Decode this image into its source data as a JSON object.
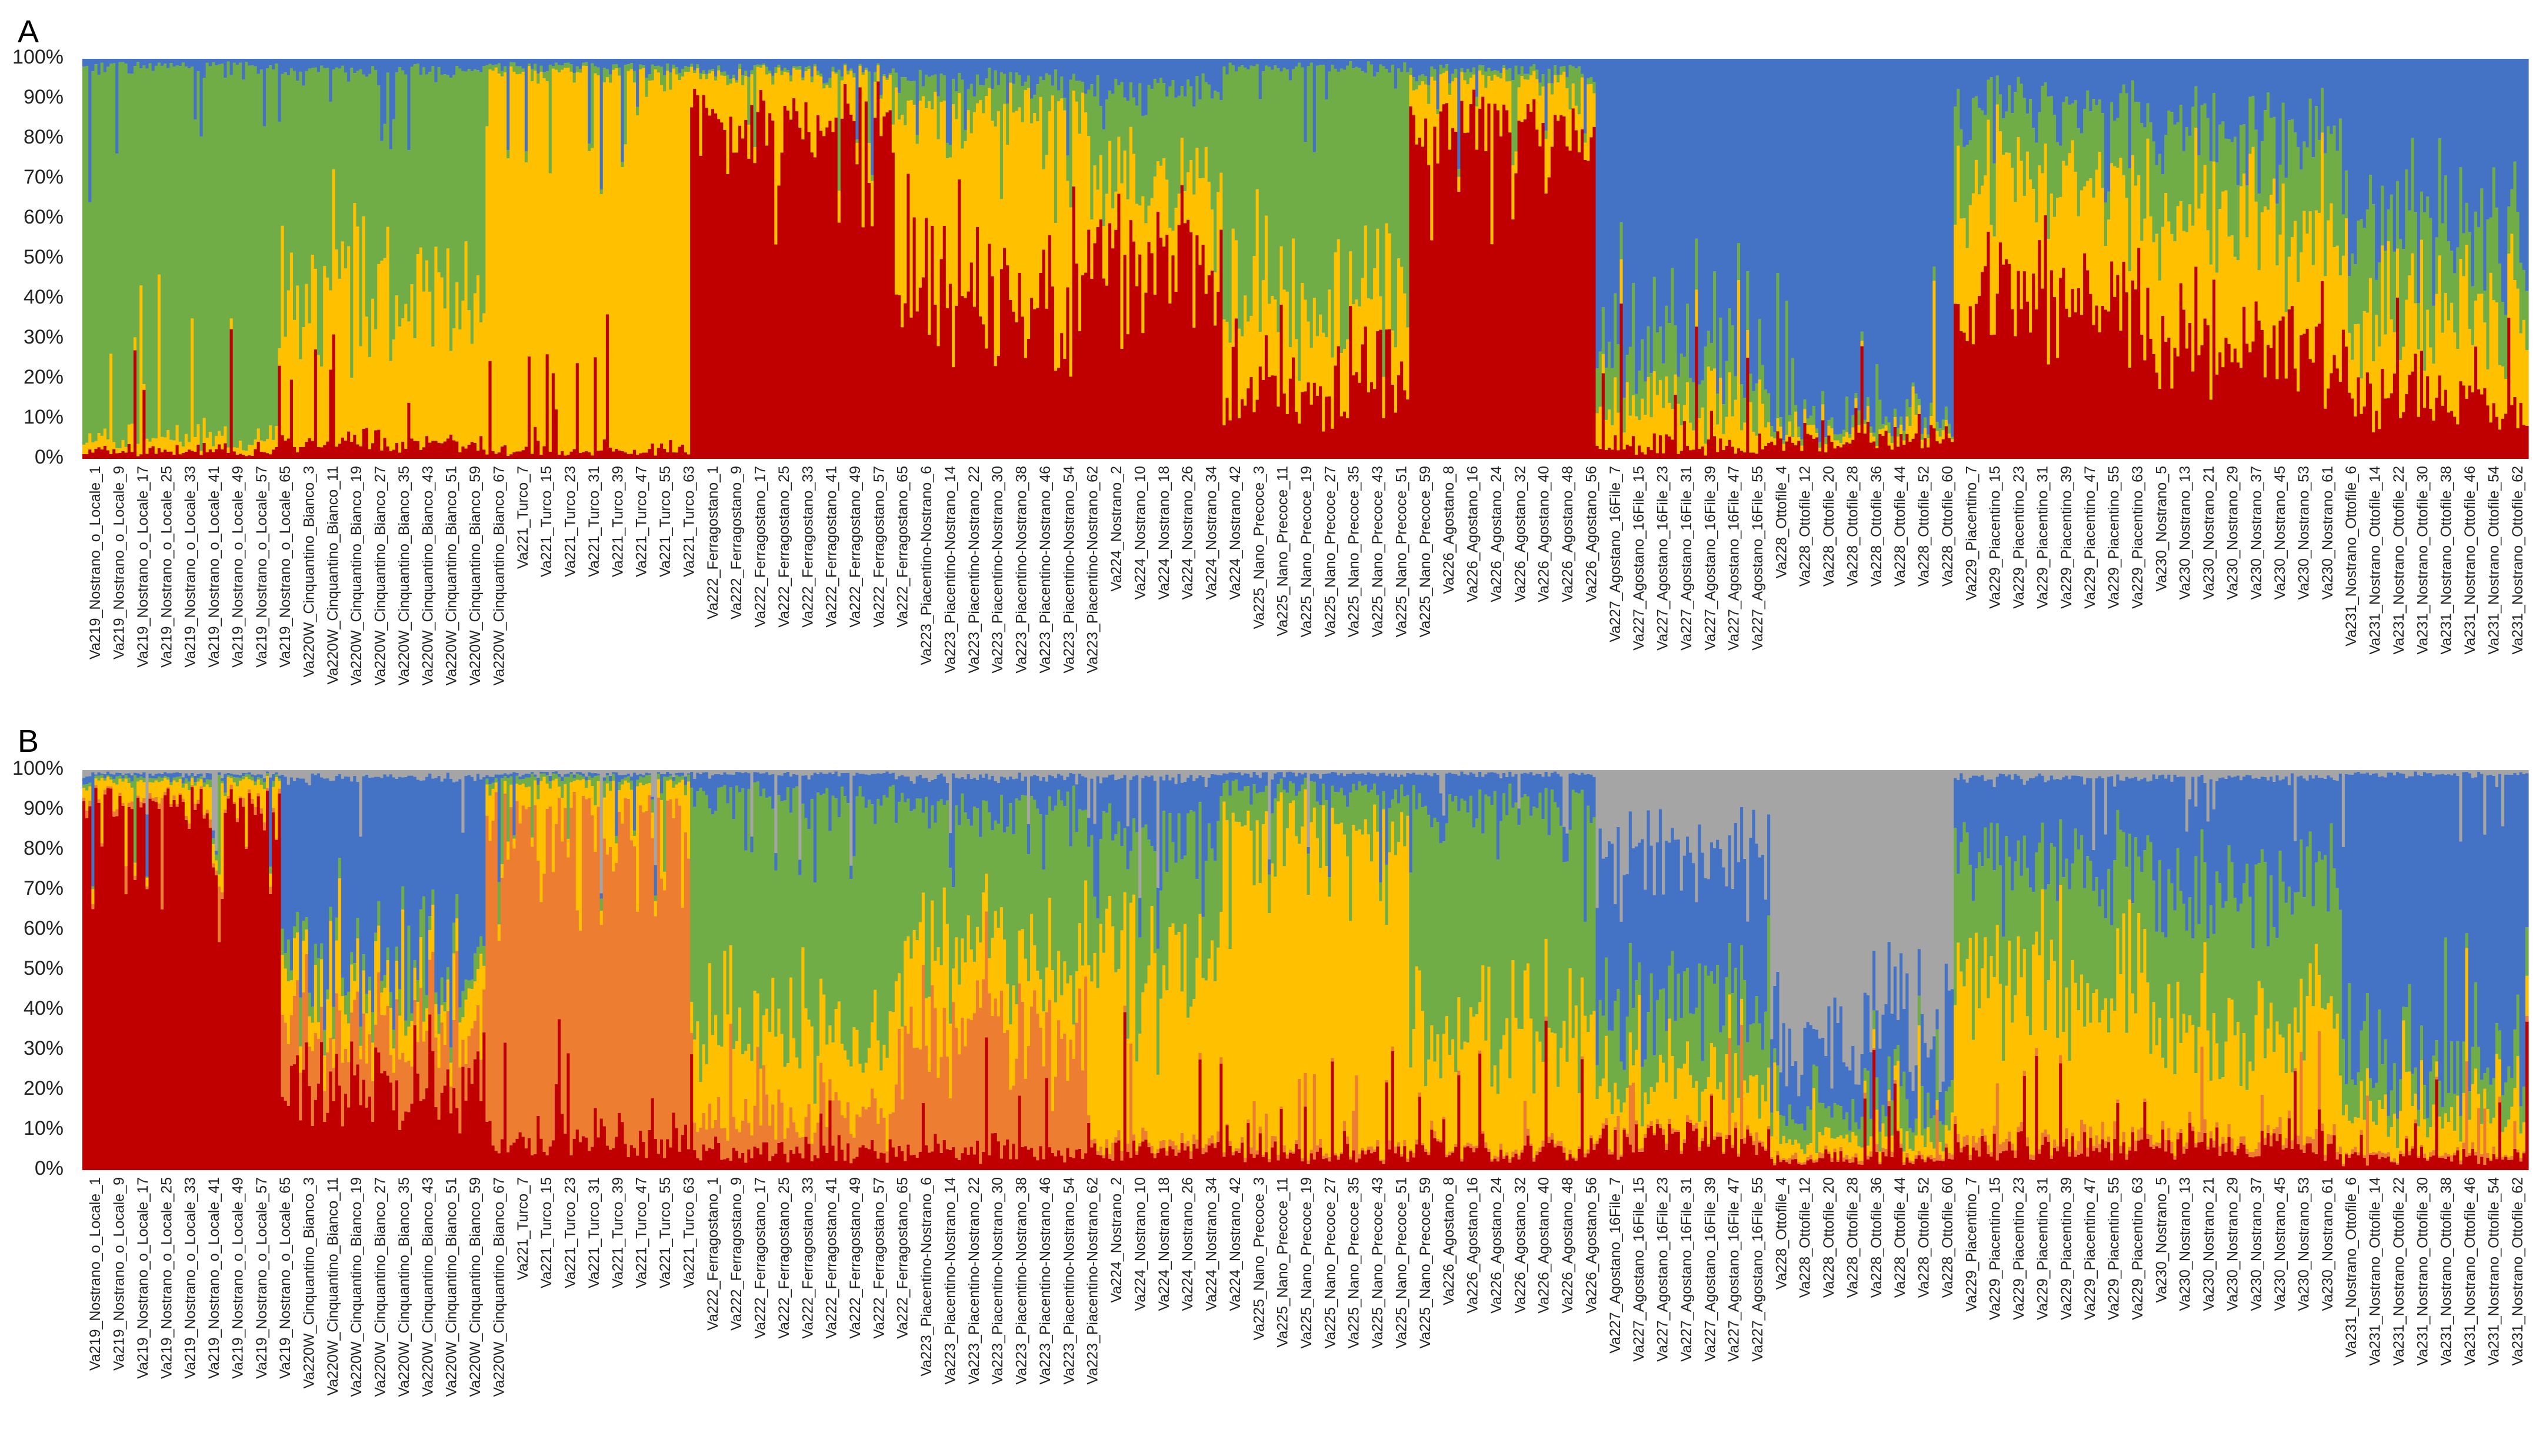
{
  "figure": {
    "panels": [
      "A",
      "B"
    ],
    "y_ticks": [
      "0%",
      "10%",
      "20%",
      "30%",
      "40%",
      "50%",
      "60%",
      "70%",
      "80%",
      "90%",
      "100%"
    ]
  },
  "chart_data": [
    {
      "type": "bar",
      "stacked": true,
      "panel": "A",
      "title": "A",
      "ylim": [
        0,
        100
      ],
      "ylabel": "",
      "xlabel": "",
      "clusters": [
        {
          "name": "red",
          "color": "#C00000"
        },
        {
          "name": "yellow",
          "color": "#FFC000"
        },
        {
          "name": "green",
          "color": "#70AD47"
        },
        {
          "name": "blue",
          "color": "#4472C4"
        }
      ],
      "groups": [
        {
          "name": "Va219",
          "n": 66,
          "q": [
            2,
            3,
            93,
            2
          ]
        },
        {
          "name": "Va220W",
          "n": 68,
          "q": [
            4,
            38,
            55,
            3
          ]
        },
        {
          "name": "Va221",
          "n": 68,
          "q": [
            2,
            94,
            2,
            2
          ]
        },
        {
          "name": "Va222",
          "n": 68,
          "q": [
            86,
            10,
            1,
            3
          ]
        },
        {
          "name": "Va223",
          "n": 64,
          "q": [
            44,
            44,
            6,
            6
          ]
        },
        {
          "name": "Va224",
          "n": 45,
          "q": [
            50,
            18,
            24,
            8
          ]
        },
        {
          "name": "Va225",
          "n": 62,
          "q": [
            18,
            20,
            60,
            2
          ]
        },
        {
          "name": "Va226",
          "n": 62,
          "q": [
            85,
            10,
            2,
            3
          ]
        },
        {
          "name": "Va227",
          "n": 58,
          "q": [
            3,
            10,
            12,
            75
          ]
        },
        {
          "name": "Va228",
          "n": 61,
          "q": [
            5,
            2,
            2,
            91
          ]
        },
        {
          "name": "Va229",
          "n": 65,
          "q": [
            40,
            30,
            18,
            12
          ]
        },
        {
          "name": "Va230",
          "n": 64,
          "q": [
            30,
            30,
            22,
            18
          ]
        },
        {
          "name": "Va231",
          "n": 62,
          "q": [
            15,
            20,
            20,
            45
          ]
        }
      ]
    },
    {
      "type": "bar",
      "stacked": true,
      "panel": "B",
      "title": "B",
      "ylim": [
        0,
        100
      ],
      "ylabel": "",
      "xlabel": "",
      "clusters": [
        {
          "name": "red",
          "color": "#C00000"
        },
        {
          "name": "orange",
          "color": "#ED7D31"
        },
        {
          "name": "yellow",
          "color": "#FFC000"
        },
        {
          "name": "green",
          "color": "#70AD47"
        },
        {
          "name": "blue",
          "color": "#4472C4"
        },
        {
          "name": "gray",
          "color": "#A5A5A5"
        }
      ],
      "groups": [
        {
          "name": "Va219",
          "n": 66,
          "q": [
            92,
            1,
            4,
            1,
            1,
            1
          ]
        },
        {
          "name": "Va220W",
          "n": 68,
          "q": [
            20,
            15,
            10,
            5,
            48,
            2
          ]
        },
        {
          "name": "Va221",
          "n": 68,
          "q": [
            8,
            82,
            6,
            2,
            1,
            1
          ]
        },
        {
          "name": "Va222",
          "n": 68,
          "q": [
            5,
            8,
            20,
            60,
            6,
            1
          ]
        },
        {
          "name": "Va223",
          "n": 64,
          "q": [
            5,
            30,
            20,
            35,
            8,
            2
          ]
        },
        {
          "name": "Va224",
          "n": 45,
          "q": [
            6,
            2,
            45,
            30,
            15,
            2
          ]
        },
        {
          "name": "Va225",
          "n": 62,
          "q": [
            4,
            1,
            80,
            10,
            4,
            1
          ]
        },
        {
          "name": "Va226",
          "n": 62,
          "q": [
            5,
            1,
            30,
            55,
            8,
            1
          ]
        },
        {
          "name": "Va227",
          "n": 58,
          "q": [
            8,
            1,
            12,
            18,
            40,
            21
          ]
        },
        {
          "name": "Va228",
          "n": 61,
          "q": [
            3,
            1,
            4,
            6,
            16,
            70
          ]
        },
        {
          "name": "Va229",
          "n": 65,
          "q": [
            6,
            2,
            40,
            30,
            20,
            2
          ]
        },
        {
          "name": "Va230",
          "n": 64,
          "q": [
            6,
            2,
            28,
            34,
            28,
            2
          ]
        },
        {
          "name": "Va231",
          "n": 62,
          "q": [
            4,
            1,
            10,
            10,
            74,
            1
          ]
        }
      ]
    }
  ],
  "sample_labels": [
    "Va219_Nostrano_o_Locale_1",
    "Va219_Nostrano_o_Locale_9",
    "Va219_Nostrano_o_Locale_17",
    "Va219_Nostrano_o_Locale_25",
    "Va219_Nostrano_o_Locale_33",
    "Va219_Nostrano_o_Locale_41",
    "Va219_Nostrano_o_Locale_49",
    "Va219_Nostrano_o_Locale_57",
    "Va219_Nostrano_o_Locale_65",
    "Va220W_Cinquantino_Bianco_3",
    "Va220W_Cinquantino_Bianco_11",
    "Va220W_Cinquantino_Bianco_19",
    "Va220W_Cinquantino_Bianco_27",
    "Va220W_Cinquantino_Bianco_35",
    "Va220W_Cinquantino_Bianco_43",
    "Va220W_Cinquantino_Bianco_51",
    "Va220W_Cinquantino_Bianco_59",
    "Va220W_Cinquantino_Bianco_67",
    "Va221_Turco_7",
    "Va221_Turco_15",
    "Va221_Turco_23",
    "Va221_Turco_31",
    "Va221_Turco_39",
    "Va221_Turco_47",
    "Va221_Turco_55",
    "Va221_Turco_63",
    "Va222_Ferragostano_1",
    "Va222_Ferragostano_9",
    "Va222_Ferragostano_17",
    "Va222_Ferragostano_25",
    "Va222_Ferragostano_33",
    "Va222_Ferragostano_41",
    "Va222_Ferragostano_49",
    "Va222_Ferragostano_57",
    "Va222_Ferragostano_65",
    "Va223_Piacentino-Nostrano_6",
    "Va223_Piacentino-Nostrano_14",
    "Va223_Piacentino-Nostrano_22",
    "Va223_Piacentino-Nostrano_30",
    "Va223_Piacentino-Nostrano_38",
    "Va223_Piacentino-Nostrano_46",
    "Va223_Piacentino-Nostrano_54",
    "Va223_Piacentino-Nostrano_62",
    "Va224_Nostrano_2",
    "Va224_Nostrano_10",
    "Va224_Nostrano_18",
    "Va224_Nostrano_26",
    "Va224_Nostrano_34",
    "Va224_Nostrano_42",
    "Va225_Nano_Precoce_3",
    "Va225_Nano_Precoce_11",
    "Va225_Nano_Precoce_19",
    "Va225_Nano_Precoce_27",
    "Va225_Nano_Precoce_35",
    "Va225_Nano_Precoce_43",
    "Va225_Nano_Precoce_51",
    "Va225_Nano_Precoce_59",
    "Va226_Agostano_8",
    "Va226_Agostano_16",
    "Va226_Agostano_24",
    "Va226_Agostano_32",
    "Va226_Agostano_40",
    "Va226_Agostano_48",
    "Va226_Agostano_56",
    "Va227_Agostano_16File_7",
    "Va227_Agostano_16File_15",
    "Va227_Agostano_16File_23",
    "Va227_Agostano_16File_31",
    "Va227_Agostano_16File_39",
    "Va227_Agostano_16File_47",
    "Va227_Agostano_16File_55",
    "Va228_Ottofile_4",
    "Va228_Ottofile_12",
    "Va228_Ottofile_20",
    "Va228_Ottofile_28",
    "Va228_Ottofile_36",
    "Va228_Ottofile_44",
    "Va228_Ottofile_52",
    "Va228_Ottofile_60",
    "Va229_Piacentino_7",
    "Va229_Piacentino_15",
    "Va229_Piacentino_23",
    "Va229_Piacentino_31",
    "Va229_Piacentino_39",
    "Va229_Piacentino_47",
    "Va229_Piacentino_55",
    "Va229_Piacentino_63",
    "Va230_Nostrano_5",
    "Va230_Nostrano_13",
    "Va230_Nostrano_21",
    "Va230_Nostrano_29",
    "Va230_Nostrano_37",
    "Va230_Nostrano_45",
    "Va230_Nostrano_53",
    "Va230_Nostrano_61",
    "Va231_Nostrano_Ottofile_6",
    "Va231_Nostrano_Ottofile_14",
    "Va231_Nostrano_Ottofile_22",
    "Va231_Nostrano_Ottofile_30",
    "Va231_Nostrano_Ottofile_38",
    "Va231_Nostrano_Ottofile_46",
    "Va231_Nostrano_Ottofile_54",
    "Va231_Nostrano_Ottofile_62"
  ]
}
